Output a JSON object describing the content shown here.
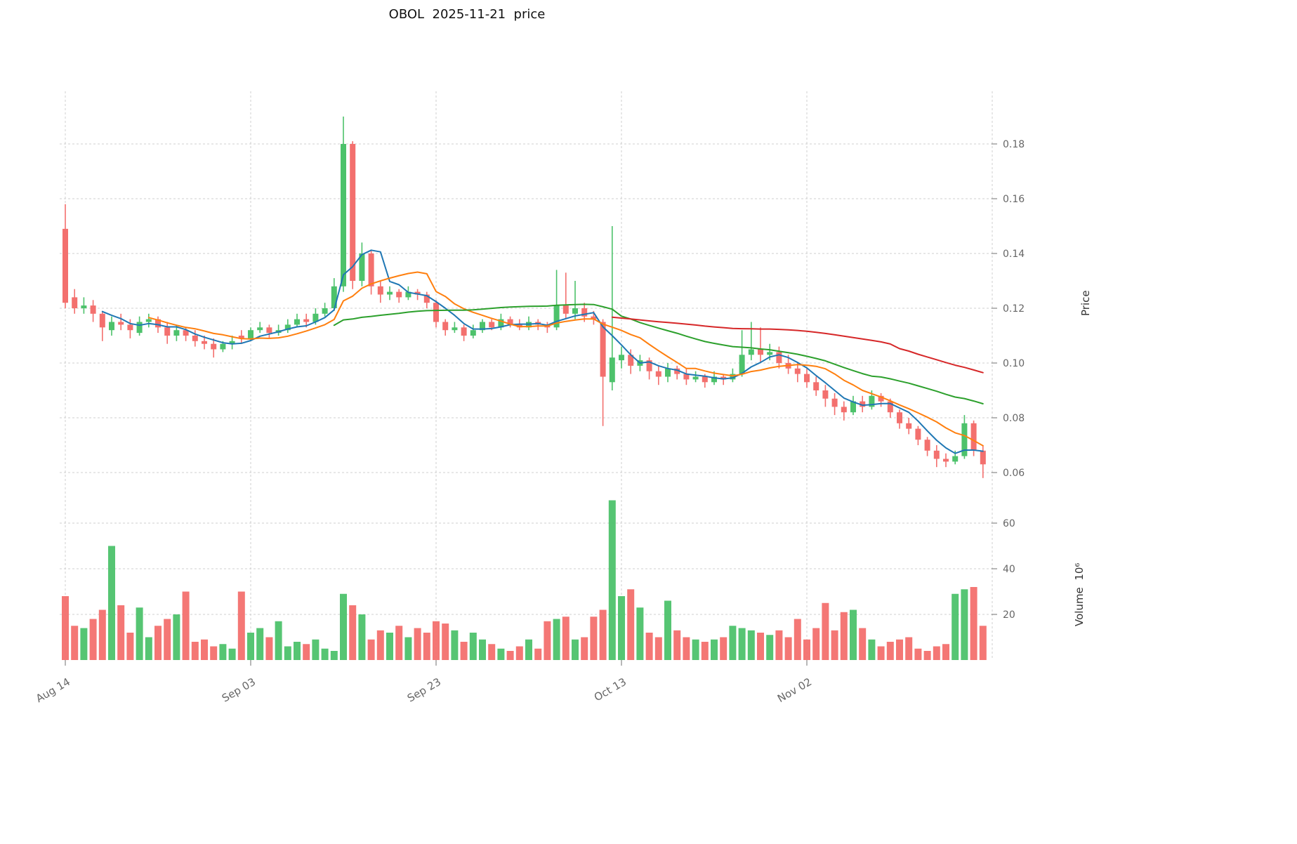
{
  "chart_data": {
    "type": "candlestick",
    "title": "OBOL  2025-11-21  price",
    "ylabel": "Price",
    "volume_label": "Volume  10⁶",
    "legend_position": "none",
    "grid": true,
    "price_ticks": [
      0.06,
      0.08,
      0.1,
      0.12,
      0.14,
      0.16,
      0.18
    ],
    "volume_ticks": [
      20,
      40,
      60
    ],
    "x_ticks": [
      {
        "index": 0,
        "label": "Aug 14"
      },
      {
        "index": 20,
        "label": "Sep 03"
      },
      {
        "index": 40,
        "label": "Sep 23"
      },
      {
        "index": 60,
        "label": "Oct 13"
      },
      {
        "index": 80,
        "label": "Nov 02"
      },
      {
        "index": 100,
        "label": ""
      }
    ],
    "moving_averages": [
      {
        "period": 5,
        "color": "#1f77b4"
      },
      {
        "period": 10,
        "color": "#ff7f0e"
      },
      {
        "period": 30,
        "color": "#2ca02c"
      },
      {
        "period": 60,
        "color": "#d62728"
      }
    ],
    "colors": {
      "up": "#4dc26b",
      "down": "#f3706e",
      "grid": "#cfcfcf",
      "tick_text": "#666666",
      "title_text": "#111111"
    },
    "candles": {
      "open": [
        0.149,
        0.124,
        0.12,
        0.121,
        0.118,
        0.112,
        0.115,
        0.114,
        0.111,
        0.115,
        0.116,
        0.113,
        0.11,
        0.112,
        0.11,
        0.108,
        0.107,
        0.105,
        0.107,
        0.11,
        0.109,
        0.112,
        0.113,
        0.111,
        0.112,
        0.114,
        0.116,
        0.115,
        0.118,
        0.12,
        0.128,
        0.18,
        0.13,
        0.14,
        0.128,
        0.125,
        0.126,
        0.124,
        0.126,
        0.125,
        0.122,
        0.115,
        0.112,
        0.113,
        0.11,
        0.112,
        0.115,
        0.113,
        0.116,
        0.114,
        0.113,
        0.115,
        0.114,
        0.113,
        0.121,
        0.118,
        0.12,
        0.117,
        0.115,
        0.093,
        0.101,
        0.103,
        0.099,
        0.101,
        0.097,
        0.095,
        0.098,
        0.096,
        0.094,
        0.095,
        0.093,
        0.095,
        0.094,
        0.096,
        0.103,
        0.105,
        0.103,
        0.104,
        0.1,
        0.098,
        0.096,
        0.093,
        0.09,
        0.087,
        0.084,
        0.082,
        0.086,
        0.084,
        0.088,
        0.086,
        0.082,
        0.078,
        0.076,
        0.072,
        0.068,
        0.065,
        0.064,
        0.066,
        0.078,
        0.068
      ],
      "high": [
        0.158,
        0.127,
        0.124,
        0.123,
        0.119,
        0.117,
        0.118,
        0.116,
        0.117,
        0.118,
        0.117,
        0.115,
        0.114,
        0.113,
        0.112,
        0.11,
        0.109,
        0.108,
        0.11,
        0.112,
        0.113,
        0.115,
        0.114,
        0.114,
        0.116,
        0.118,
        0.118,
        0.12,
        0.122,
        0.131,
        0.19,
        0.181,
        0.144,
        0.141,
        0.13,
        0.128,
        0.127,
        0.128,
        0.127,
        0.126,
        0.123,
        0.116,
        0.115,
        0.114,
        0.114,
        0.116,
        0.116,
        0.118,
        0.117,
        0.116,
        0.117,
        0.116,
        0.115,
        0.134,
        0.133,
        0.13,
        0.122,
        0.119,
        0.116,
        0.15,
        0.106,
        0.105,
        0.103,
        0.102,
        0.099,
        0.1,
        0.099,
        0.098,
        0.097,
        0.096,
        0.097,
        0.096,
        0.098,
        0.112,
        0.115,
        0.113,
        0.107,
        0.106,
        0.103,
        0.1,
        0.098,
        0.095,
        0.092,
        0.089,
        0.086,
        0.088,
        0.088,
        0.09,
        0.089,
        0.087,
        0.083,
        0.08,
        0.077,
        0.073,
        0.07,
        0.067,
        0.068,
        0.081,
        0.079,
        0.07
      ],
      "low": [
        0.12,
        0.118,
        0.118,
        0.115,
        0.108,
        0.11,
        0.112,
        0.109,
        0.11,
        0.113,
        0.111,
        0.107,
        0.108,
        0.108,
        0.106,
        0.105,
        0.102,
        0.104,
        0.105,
        0.107,
        0.108,
        0.111,
        0.109,
        0.11,
        0.111,
        0.113,
        0.113,
        0.114,
        0.117,
        0.119,
        0.126,
        0.127,
        0.128,
        0.125,
        0.122,
        0.123,
        0.122,
        0.123,
        0.123,
        0.12,
        0.113,
        0.11,
        0.111,
        0.108,
        0.109,
        0.111,
        0.112,
        0.112,
        0.113,
        0.112,
        0.112,
        0.112,
        0.111,
        0.112,
        0.116,
        0.116,
        0.115,
        0.114,
        0.077,
        0.09,
        0.098,
        0.096,
        0.097,
        0.094,
        0.092,
        0.093,
        0.094,
        0.092,
        0.093,
        0.091,
        0.092,
        0.092,
        0.093,
        0.095,
        0.101,
        0.1,
        0.101,
        0.098,
        0.096,
        0.093,
        0.091,
        0.088,
        0.084,
        0.081,
        0.079,
        0.081,
        0.082,
        0.083,
        0.084,
        0.08,
        0.076,
        0.074,
        0.07,
        0.066,
        0.062,
        0.062,
        0.063,
        0.065,
        0.066,
        0.058
      ],
      "close": [
        0.122,
        0.12,
        0.121,
        0.118,
        0.113,
        0.115,
        0.114,
        0.112,
        0.115,
        0.116,
        0.113,
        0.11,
        0.112,
        0.11,
        0.108,
        0.107,
        0.105,
        0.107,
        0.108,
        0.109,
        0.112,
        0.113,
        0.111,
        0.112,
        0.114,
        0.116,
        0.115,
        0.118,
        0.12,
        0.128,
        0.18,
        0.13,
        0.14,
        0.128,
        0.125,
        0.126,
        0.124,
        0.126,
        0.125,
        0.122,
        0.115,
        0.112,
        0.113,
        0.11,
        0.112,
        0.115,
        0.113,
        0.116,
        0.114,
        0.113,
        0.115,
        0.114,
        0.113,
        0.121,
        0.118,
        0.12,
        0.117,
        0.116,
        0.095,
        0.102,
        0.103,
        0.099,
        0.101,
        0.097,
        0.095,
        0.098,
        0.096,
        0.094,
        0.095,
        0.093,
        0.095,
        0.094,
        0.096,
        0.103,
        0.105,
        0.103,
        0.104,
        0.1,
        0.098,
        0.096,
        0.093,
        0.09,
        0.087,
        0.084,
        0.082,
        0.086,
        0.084,
        0.088,
        0.086,
        0.082,
        0.078,
        0.076,
        0.072,
        0.068,
        0.065,
        0.064,
        0.066,
        0.078,
        0.068,
        0.063
      ]
    },
    "volume_millions": [
      28,
      15,
      14,
      18,
      22,
      50,
      24,
      12,
      23,
      10,
      15,
      18,
      20,
      30,
      8,
      9,
      6,
      7,
      5,
      30,
      12,
      14,
      10,
      17,
      6,
      8,
      7,
      9,
      5,
      4,
      29,
      24,
      20,
      9,
      13,
      12,
      15,
      10,
      14,
      12,
      17,
      16,
      13,
      8,
      12,
      9,
      7,
      5,
      4,
      6,
      9,
      5,
      17,
      18,
      19,
      9,
      10,
      19,
      22,
      70,
      28,
      31,
      23,
      12,
      10,
      26,
      13,
      10,
      9,
      8,
      9,
      10,
      15,
      14,
      13,
      12,
      11,
      13,
      10,
      18,
      9,
      14,
      25,
      13,
      21,
      22,
      14,
      9,
      6,
      8,
      9,
      10,
      5,
      4,
      6,
      7,
      29,
      31,
      32,
      15
    ]
  }
}
